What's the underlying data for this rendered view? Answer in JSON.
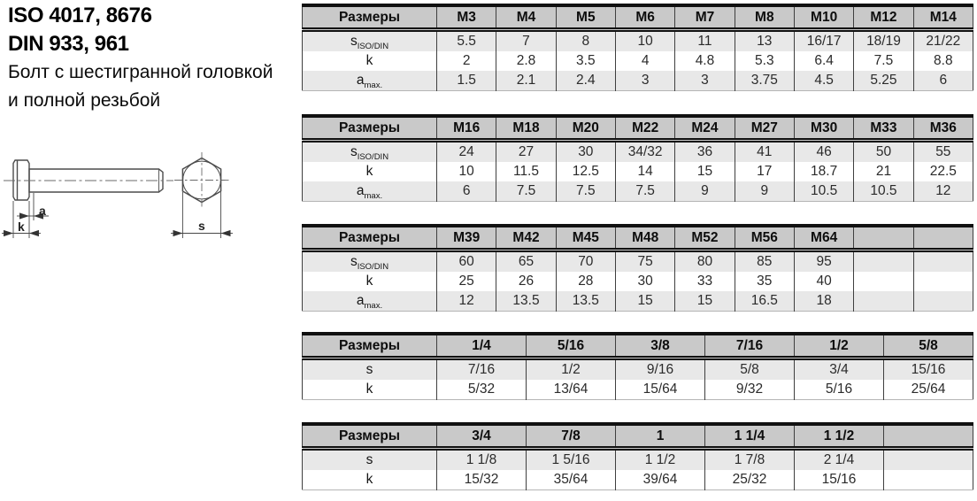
{
  "title": {
    "iso": "ISO 4017, 8676",
    "din": "DIN 933, 961",
    "desc1": "Болт с шестигранной головкой",
    "desc2": "и полной резьбой"
  },
  "drawing": {
    "dim_a": "a",
    "dim_k": "k",
    "dim_s": "s"
  },
  "tables": [
    {
      "header_label": "Размеры",
      "columns": [
        "M3",
        "M4",
        "M5",
        "M6",
        "M7",
        "M8",
        "M10",
        "M12",
        "M14"
      ],
      "rows": [
        {
          "base": "s",
          "sub": "ISO/DIN",
          "values": [
            "5.5",
            "7",
            "8",
            "10",
            "11",
            "13",
            "16/17",
            "18/19",
            "21/22"
          ]
        },
        {
          "base": "k",
          "sub": "",
          "values": [
            "2",
            "2.8",
            "3.5",
            "4",
            "4.8",
            "5.3",
            "6.4",
            "7.5",
            "8.8"
          ]
        },
        {
          "base": "a",
          "sub": "max.",
          "values": [
            "1.5",
            "2.1",
            "2.4",
            "3",
            "3",
            "3.75",
            "4.5",
            "5.25",
            "6"
          ]
        }
      ]
    },
    {
      "header_label": "Размеры",
      "columns": [
        "M16",
        "M18",
        "M20",
        "M22",
        "M24",
        "M27",
        "M30",
        "M33",
        "M36"
      ],
      "rows": [
        {
          "base": "s",
          "sub": "ISO/DIN",
          "values": [
            "24",
            "27",
            "30",
            "34/32",
            "36",
            "41",
            "46",
            "50",
            "55"
          ]
        },
        {
          "base": "k",
          "sub": "",
          "values": [
            "10",
            "11.5",
            "12.5",
            "14",
            "15",
            "17",
            "18.7",
            "21",
            "22.5"
          ]
        },
        {
          "base": "a",
          "sub": "max.",
          "values": [
            "6",
            "7.5",
            "7.5",
            "7.5",
            "9",
            "9",
            "10.5",
            "10.5",
            "12"
          ]
        }
      ]
    },
    {
      "header_label": "Размеры",
      "columns": [
        "M39",
        "M42",
        "M45",
        "M48",
        "M52",
        "M56",
        "M64",
        "",
        ""
      ],
      "rows": [
        {
          "base": "s",
          "sub": "ISO/DIN",
          "values": [
            "60",
            "65",
            "70",
            "75",
            "80",
            "85",
            "95",
            "",
            ""
          ]
        },
        {
          "base": "k",
          "sub": "",
          "values": [
            "25",
            "26",
            "28",
            "30",
            "33",
            "35",
            "40",
            "",
            ""
          ]
        },
        {
          "base": "a",
          "sub": "max.",
          "values": [
            "12",
            "13.5",
            "13.5",
            "15",
            "15",
            "16.5",
            "18",
            "",
            ""
          ]
        }
      ]
    },
    {
      "header_label": "Размеры",
      "columns": [
        "1/4",
        "5/16",
        "3/8",
        "7/16",
        "1/2",
        "5/8"
      ],
      "rows": [
        {
          "base": "s",
          "sub": "",
          "values": [
            "7/16",
            "1/2",
            "9/16",
            "5/8",
            "3/4",
            "15/16"
          ]
        },
        {
          "base": "k",
          "sub": "",
          "values": [
            "5/32",
            "13/64",
            "15/64",
            "9/32",
            "5/16",
            "25/64"
          ]
        }
      ]
    },
    {
      "header_label": "Размеры",
      "columns": [
        "3/4",
        "7/8",
        "1",
        "1 1/4",
        "1 1/2",
        ""
      ],
      "rows": [
        {
          "base": "s",
          "sub": "",
          "values": [
            "1 1/8",
            "1 5/16",
            "1 1/2",
            "1 7/8",
            "2 1/4",
            ""
          ]
        },
        {
          "base": "k",
          "sub": "",
          "values": [
            "15/32",
            "35/64",
            "39/64",
            "25/32",
            "15/16",
            ""
          ]
        }
      ]
    }
  ]
}
